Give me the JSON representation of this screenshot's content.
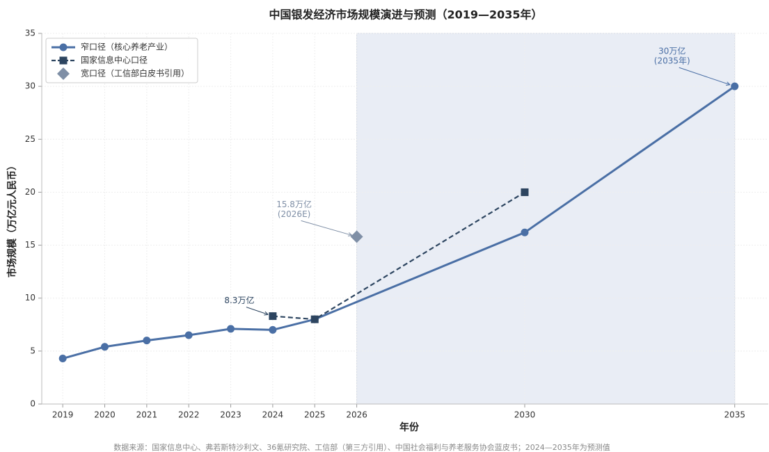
{
  "chart_data": {
    "type": "line",
    "title": "中国银发经济市场规模演进与预测（2019—2035年）",
    "xlabel": "年份",
    "ylabel": "市场规模（万亿元人民币）",
    "source": "数据来源：国家信息中心、弗若斯特沙利文、36氪研究院、工信部（第三方引用）、中国社会福利与养老服务协会蓝皮书；2024—2035年为预测值",
    "xlim": [
      2018.5,
      2035.8
    ],
    "xticks": [
      2019,
      2020,
      2021,
      2022,
      2023,
      2024,
      2025,
      2026,
      2030,
      2035
    ],
    "ylim": [
      0,
      35
    ],
    "yticks": [
      0,
      5,
      10,
      15,
      20,
      25,
      30,
      35
    ],
    "grid": true,
    "legend": "upper left",
    "forecast_span": [
      2026,
      2035
    ],
    "forecast_color": "#e9edf5",
    "series": [
      {
        "name": "窄口径（核心养老产业）",
        "color": "#4a6fa5",
        "marker": "circle",
        "linestyle": "solid",
        "x": [
          2019,
          2020,
          2021,
          2022,
          2023,
          2024,
          2025,
          2030,
          2035
        ],
        "values": [
          4.3,
          5.4,
          6.0,
          6.5,
          7.1,
          7.0,
          8.0,
          16.2,
          30
        ]
      },
      {
        "name": "国家信息中心口径",
        "color": "#2d4560",
        "marker": "square",
        "linestyle": "dashed",
        "x": [
          2024,
          2025,
          2030
        ],
        "values": [
          8.3,
          8.0,
          20
        ]
      },
      {
        "name": "宽口径（工信部白皮书引用）",
        "color": "#7f8fa6",
        "marker": "diamond",
        "linestyle": "none",
        "x": [
          2026
        ],
        "values": [
          15.8
        ]
      }
    ],
    "annotations": [
      {
        "lines": [
          "8.3万亿"
        ],
        "x": 2024,
        "y": 8.3,
        "color": "#2d4560"
      },
      {
        "lines": [
          "15.8万亿",
          "(2026E)"
        ],
        "x": 2026,
        "y": 15.8,
        "color": "#7f8fa6"
      },
      {
        "lines": [
          "30万亿",
          "(2035年)"
        ],
        "x": 2035,
        "y": 30,
        "color": "#4a6fa5"
      }
    ]
  }
}
